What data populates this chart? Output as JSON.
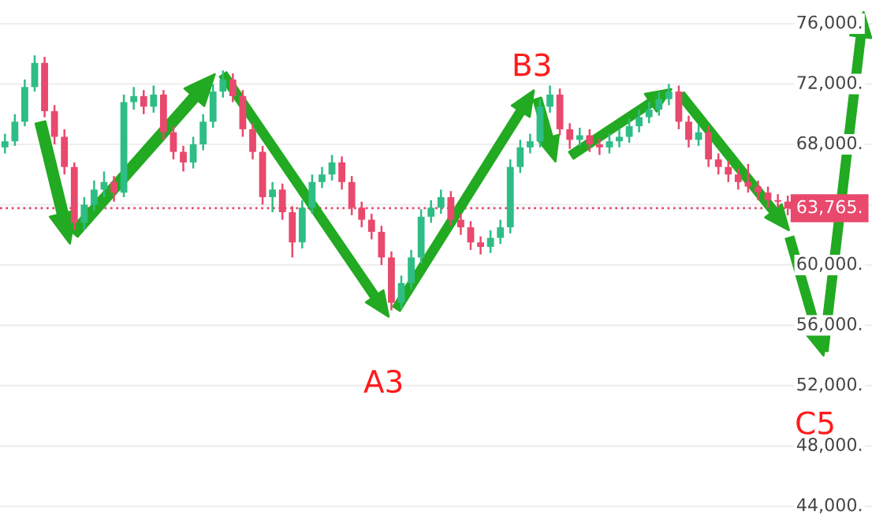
{
  "chart_data": {
    "type": "candlestick",
    "categories": [
      null,
      null,
      null,
      null,
      null,
      null,
      null,
      null,
      null,
      null,
      null,
      null,
      null,
      null,
      null,
      null,
      null,
      null,
      null,
      null,
      null,
      null,
      null,
      null,
      null,
      null,
      null,
      null,
      null,
      null,
      null,
      null,
      null,
      null,
      null,
      null,
      null,
      null,
      null,
      null,
      null,
      null,
      null,
      null,
      null,
      null,
      null,
      null,
      null,
      null,
      null,
      null,
      null,
      null,
      null,
      null,
      null,
      null,
      null,
      null,
      null,
      null,
      null,
      null,
      null,
      null,
      null,
      null,
      null,
      null,
      null,
      null,
      null,
      null,
      null,
      null,
      null,
      null,
      null,
      null,
      null,
      null,
      null,
      null,
      null,
      null,
      null,
      null
    ],
    "ohlc": [
      [
        67800,
        68700,
        67400,
        68200
      ],
      [
        68200,
        70000,
        67900,
        69500
      ],
      [
        69500,
        72300,
        69200,
        71800
      ],
      [
        71800,
        73900,
        71500,
        73400
      ],
      [
        73400,
        73800,
        69800,
        70200
      ],
      [
        70200,
        70600,
        68000,
        68500
      ],
      [
        68500,
        69000,
        66000,
        66500
      ],
      [
        66500,
        66800,
        62300,
        62800
      ],
      [
        62800,
        64500,
        62300,
        64000
      ],
      [
        64000,
        65600,
        63600,
        65000
      ],
      [
        65000,
        66200,
        64500,
        65500
      ],
      [
        65500,
        65900,
        64200,
        64800
      ],
      [
        64800,
        71300,
        64500,
        70800
      ],
      [
        70800,
        71800,
        70300,
        71200
      ],
      [
        71200,
        71600,
        70000,
        70500
      ],
      [
        70500,
        71900,
        70100,
        71300
      ],
      [
        71300,
        71600,
        68300,
        68800
      ],
      [
        68800,
        69200,
        67000,
        67500
      ],
      [
        67500,
        67900,
        66200,
        66800
      ],
      [
        66800,
        68500,
        66400,
        68000
      ],
      [
        68000,
        70000,
        67600,
        69500
      ],
      [
        69500,
        72000,
        69100,
        71500
      ],
      [
        71500,
        72900,
        71100,
        72300
      ],
      [
        72300,
        72700,
        70800,
        71200
      ],
      [
        71200,
        71600,
        68500,
        69000
      ],
      [
        69000,
        69400,
        67000,
        67500
      ],
      [
        67500,
        67900,
        64000,
        64500
      ],
      [
        64500,
        65500,
        63500,
        65000
      ],
      [
        65000,
        65400,
        63000,
        63500
      ],
      [
        63500,
        63900,
        60500,
        61500
      ],
      [
        61500,
        64300,
        61100,
        63800
      ],
      [
        63800,
        66000,
        63400,
        65500
      ],
      [
        65500,
        66500,
        65100,
        66000
      ],
      [
        66000,
        67300,
        65600,
        66800
      ],
      [
        66800,
        67200,
        65000,
        65500
      ],
      [
        65500,
        65900,
        63300,
        63800
      ],
      [
        63800,
        64200,
        62500,
        63000
      ],
      [
        63000,
        63400,
        61700,
        62200
      ],
      [
        62200,
        62600,
        60000,
        60500
      ],
      [
        60500,
        60900,
        57000,
        57500
      ],
      [
        57500,
        59300,
        57100,
        58800
      ],
      [
        58800,
        61000,
        58400,
        60500
      ],
      [
        60500,
        63700,
        60100,
        63200
      ],
      [
        63200,
        64300,
        62800,
        63800
      ],
      [
        63800,
        65000,
        63400,
        64500
      ],
      [
        64500,
        64900,
        62600,
        63000
      ],
      [
        63000,
        63400,
        62000,
        62500
      ],
      [
        62500,
        62900,
        61000,
        61500
      ],
      [
        61500,
        61900,
        60700,
        61200
      ],
      [
        61200,
        62300,
        60800,
        61800
      ],
      [
        61800,
        63000,
        61400,
        62500
      ],
      [
        62500,
        67000,
        62100,
        66500
      ],
      [
        66500,
        68300,
        66100,
        67800
      ],
      [
        67800,
        68700,
        67400,
        68200
      ],
      [
        68200,
        71000,
        67800,
        70500
      ],
      [
        70500,
        71900,
        70100,
        71300
      ],
      [
        71300,
        71700,
        68600,
        69000
      ],
      [
        69000,
        69400,
        67700,
        68300
      ],
      [
        68300,
        69100,
        67900,
        68600
      ],
      [
        68600,
        69000,
        67500,
        68000
      ],
      [
        68000,
        68400,
        67300,
        67800
      ],
      [
        67800,
        68700,
        67400,
        68200
      ],
      [
        68200,
        69000,
        67800,
        68500
      ],
      [
        68500,
        69700,
        68100,
        69200
      ],
      [
        69200,
        70300,
        68800,
        69800
      ],
      [
        69800,
        70800,
        69400,
        70300
      ],
      [
        70300,
        71500,
        69900,
        71000
      ],
      [
        71000,
        72000,
        70600,
        71500
      ],
      [
        71500,
        71900,
        69000,
        69500
      ],
      [
        69500,
        69900,
        67800,
        68300
      ],
      [
        68300,
        69300,
        67900,
        68800
      ],
      [
        68800,
        69200,
        66500,
        67000
      ],
      [
        67000,
        67400,
        66000,
        66500
      ],
      [
        66500,
        66900,
        65500,
        66000
      ],
      [
        66000,
        66400,
        65000,
        65500
      ],
      [
        65500,
        66700,
        64800,
        65200
      ],
      [
        65200,
        65600,
        64300,
        64800
      ],
      [
        64800,
        65200,
        63800,
        64300
      ],
      [
        64300,
        64700,
        63800,
        64200
      ],
      [
        64200,
        64600,
        63300,
        63765
      ],
      null,
      null,
      null,
      null,
      null,
      null,
      null,
      null
    ],
    "ylim": [
      43160,
      77570
    ],
    "yticks": [
      {
        "value": 44000,
        "label": "44,000."
      },
      {
        "value": 48000,
        "label": "48,000."
      },
      {
        "value": 52000,
        "label": "52,000."
      },
      {
        "value": 56000,
        "label": "56,000."
      },
      {
        "value": 60000,
        "label": "60,000."
      },
      {
        "value": 64000,
        "label": null
      },
      {
        "value": 68000,
        "label": "68,000."
      },
      {
        "value": 72000,
        "label": "72,000."
      },
      {
        "value": 76000,
        "label": "76,000."
      }
    ],
    "grid": true,
    "ref_lines": [
      {
        "axis": "y",
        "value": 63765,
        "label": "63,765.",
        "color": "#e8496d",
        "line_style": "dotted"
      }
    ],
    "annotations": [
      "A3",
      "B3",
      "C5"
    ]
  }
}
